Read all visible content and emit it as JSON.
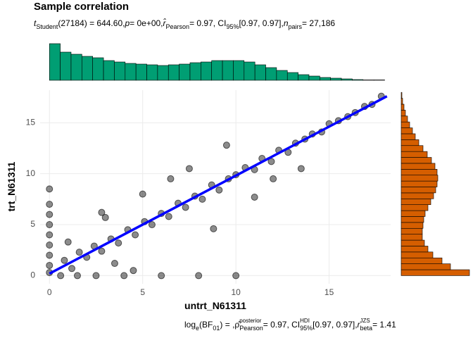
{
  "chart_data": {
    "type": "scatter",
    "title": "Sample correlation",
    "subtitle_parts": [
      {
        "text": "t",
        "style": "italic"
      },
      {
        "text": "Student",
        "style": "sub"
      },
      {
        "text": "(27184) = 644.60, ",
        "style": "plain"
      },
      {
        "text": "p",
        "style": "italic"
      },
      {
        "text": " = 0e+00, ",
        "style": "plain"
      },
      {
        "text": "r̂",
        "style": "italic"
      },
      {
        "text": "Pearson",
        "style": "sub"
      },
      {
        "text": " = 0.97, CI",
        "style": "plain"
      },
      {
        "text": "95%",
        "style": "sub"
      },
      {
        "text": " [0.97, 0.97], ",
        "style": "plain"
      },
      {
        "text": "n",
        "style": "italic"
      },
      {
        "text": "pairs",
        "style": "sub"
      },
      {
        "text": " = 27,186",
        "style": "plain"
      }
    ],
    "caption_parts": [
      {
        "text": "log",
        "style": "plain"
      },
      {
        "text": "e",
        "style": "sub"
      },
      {
        "text": "(BF",
        "style": "plain"
      },
      {
        "text": "01",
        "style": "sub"
      },
      {
        "text": ") = , ",
        "style": "plain"
      },
      {
        "text": "ρ̂",
        "style": "plain"
      },
      {
        "text": "posterior",
        "style": "sup"
      },
      {
        "text": "Pearson",
        "style": "sub"
      },
      {
        "text": " = 0.97, CI",
        "style": "plain"
      },
      {
        "text": "HDI",
        "style": "sup"
      },
      {
        "text": "95%",
        "style": "sub"
      },
      {
        "text": " [0.97, 0.97], ",
        "style": "plain"
      },
      {
        "text": "r",
        "style": "italic"
      },
      {
        "text": "JZS",
        "style": "sup"
      },
      {
        "text": "beta",
        "style": "sub"
      },
      {
        "text": " = 1.41",
        "style": "plain"
      }
    ],
    "x_label": "untrt_N61311",
    "y_label": "trt_N61311",
    "xlim": [
      -0.5,
      18.3
    ],
    "ylim": [
      -0.8,
      18.2
    ],
    "xticks": [
      0,
      5,
      10,
      15
    ],
    "yticks": [
      0,
      5,
      10,
      15
    ],
    "grid": true,
    "point_color": "#000000",
    "x": [
      0,
      0,
      0,
      0,
      0,
      0,
      0,
      0,
      0,
      0.6,
      1.5,
      2.5,
      4,
      6,
      8,
      10,
      0.8,
      1.2,
      1.6,
      2,
      2.4,
      2.8,
      3.3,
      3.7,
      4.2,
      4.6,
      5.1,
      5.5,
      6,
      6.4,
      6.9,
      7.3,
      7.8,
      8.2,
      8.7,
      9.1,
      9.6,
      10,
      10.5,
      11,
      11.4,
      11.9,
      12.3,
      12.8,
      13.2,
      13.7,
      14.1,
      14.6,
      15,
      15.5,
      16,
      16.4,
      16.9,
      17.3,
      17.8,
      2.8,
      4.5,
      6.5,
      3,
      7.5,
      9.5,
      12,
      11,
      13.5,
      5,
      8.8,
      1,
      3.5
    ],
    "y": [
      0.3,
      1,
      2,
      3,
      4,
      5,
      6,
      7,
      8.5,
      0,
      0,
      0,
      0,
      0,
      0,
      0,
      1.5,
      0.7,
      2.3,
      1.8,
      2.9,
      2.4,
      3.6,
      3.2,
      4.5,
      4,
      5.3,
      5,
      6.1,
      5.8,
      7.1,
      6.7,
      7.8,
      7.5,
      8.9,
      8.4,
      9.5,
      9.9,
      10.6,
      10.4,
      11.5,
      11.2,
      12.3,
      12.1,
      13,
      13.4,
      13.9,
      14.1,
      14.9,
      15.2,
      15.6,
      16,
      16.6,
      16.8,
      17.6,
      6.2,
      0.5,
      9.5,
      5.7,
      10.5,
      12.8,
      9.5,
      7.7,
      10.5,
      8,
      4.6,
      3.3,
      1.2
    ],
    "fit": {
      "x": [
        0,
        18.1
      ],
      "y": [
        0.2,
        17.6
      ],
      "color": "#0000ff"
    },
    "x_hist": {
      "color": "#009e73",
      "bins": [
        0,
        0.58,
        1.16,
        1.74,
        2.32,
        2.9,
        3.48,
        4.06,
        4.64,
        5.22,
        5.8,
        6.38,
        6.96,
        7.54,
        8.12,
        8.7,
        9.28,
        9.86,
        10.44,
        11.02,
        11.6,
        12.18,
        12.76,
        13.34,
        13.92,
        14.5,
        15.08,
        15.66,
        16.24,
        16.82,
        17.4,
        17.98
      ],
      "counts": [
        1820,
        1400,
        1295,
        1190,
        1120,
        980,
        910,
        840,
        805,
        770,
        735,
        770,
        805,
        875,
        910,
        980,
        980,
        980,
        910,
        770,
        630,
        490,
        385,
        280,
        210,
        140,
        105,
        70,
        35,
        18,
        18
      ]
    },
    "y_hist": {
      "color": "#d55e00",
      "bins": [
        0,
        0.58,
        1.16,
        1.74,
        2.32,
        2.9,
        3.48,
        4.06,
        4.64,
        5.22,
        5.8,
        6.38,
        6.96,
        7.54,
        8.12,
        8.7,
        9.28,
        9.86,
        10.44,
        11.02,
        11.6,
        12.18,
        12.76,
        13.34,
        13.92,
        14.5,
        15.08,
        15.66,
        16.24,
        16.82,
        17.4,
        17.98
      ],
      "counts": [
        3395,
        2450,
        2030,
        1575,
        1330,
        1155,
        1050,
        1050,
        1085,
        1120,
        1190,
        1330,
        1470,
        1610,
        1715,
        1785,
        1820,
        1785,
        1680,
        1505,
        1295,
        1085,
        875,
        700,
        560,
        420,
        315,
        210,
        140,
        70,
        35
      ]
    }
  }
}
